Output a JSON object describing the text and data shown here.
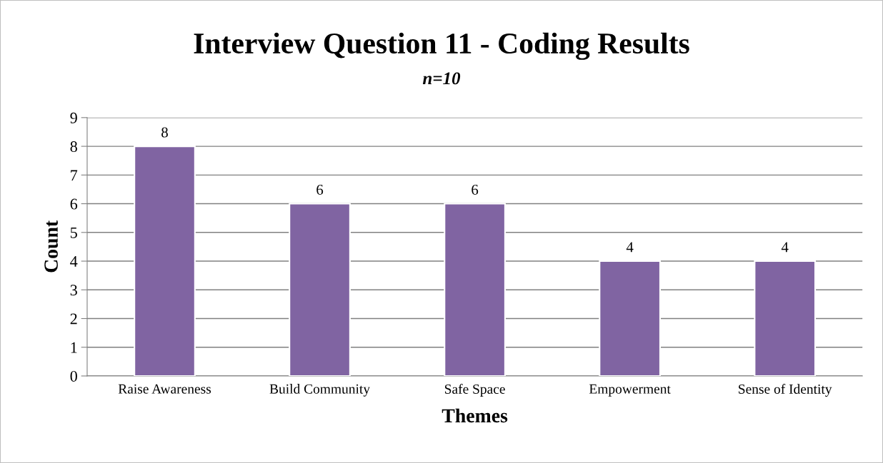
{
  "chart_data": {
    "type": "bar",
    "title": "Interview Question 11 - Coding Results",
    "subtitle": "n=10",
    "xlabel": "Themes",
    "ylabel": "Count",
    "categories": [
      "Raise Awareness",
      "Build Community",
      "Safe Space",
      "Empowerment",
      "Sense of Identity"
    ],
    "values": [
      8,
      6,
      6,
      4,
      4
    ],
    "color": "#8064a2",
    "ylim": [
      0,
      9
    ],
    "yticks": [
      0,
      1,
      2,
      3,
      4,
      5,
      6,
      7,
      8,
      9
    ],
    "grid": "y",
    "data_labels": true
  }
}
